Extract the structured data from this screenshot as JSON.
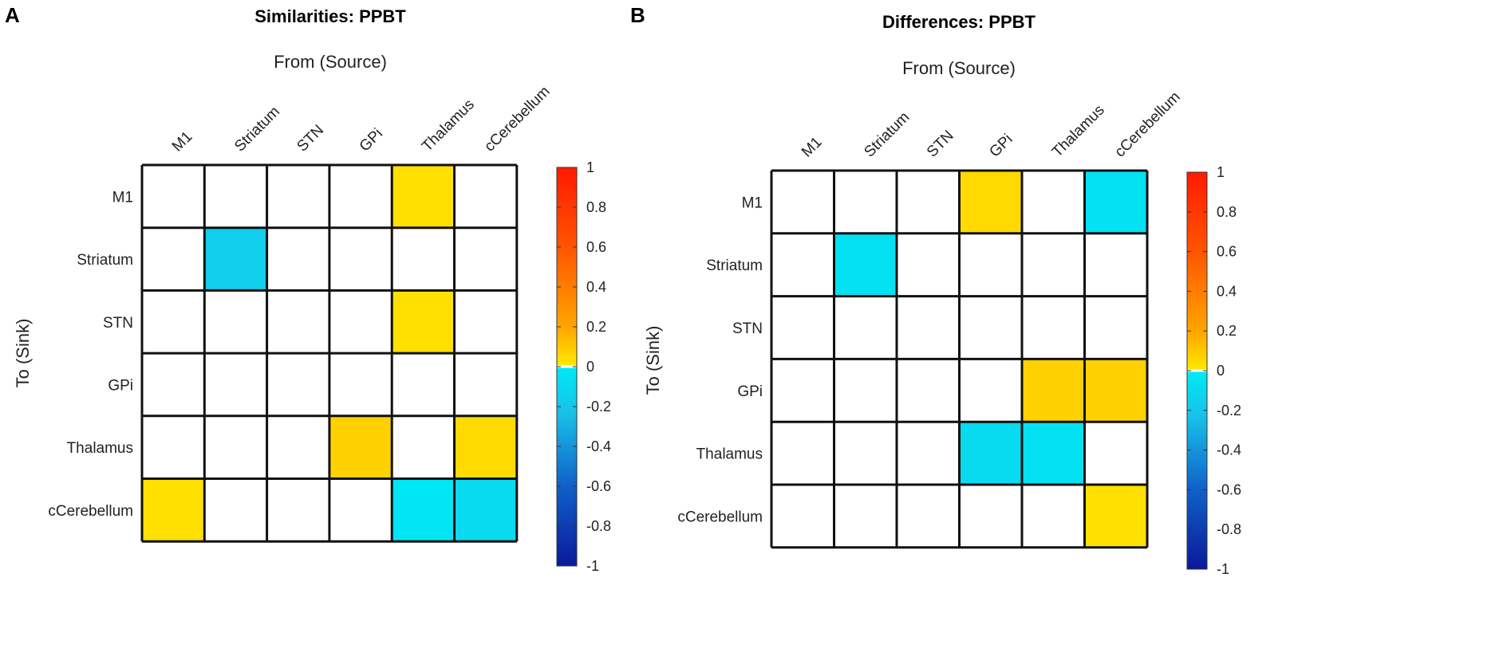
{
  "chart_data": [
    {
      "type": "heatmap",
      "panel_label": "A",
      "title": "Similarities: PPBT",
      "xlabel": "From (Source)",
      "ylabel": "To (Sink)",
      "columns": [
        "M1",
        "Striatum",
        "STN",
        "GPi",
        "Thalamus",
        "cCerebellum"
      ],
      "rows": [
        "M1",
        "Striatum",
        "STN",
        "GPi",
        "Thalamus",
        "cCerebellum"
      ],
      "values": [
        [
          0,
          0,
          0,
          0,
          0.2,
          0
        ],
        [
          0,
          -0.3,
          0,
          0,
          0,
          0
        ],
        [
          0,
          0,
          0,
          0,
          0.2,
          0
        ],
        [
          0,
          0,
          0,
          0,
          0,
          0
        ],
        [
          0,
          0,
          0,
          0.25,
          0,
          0.22
        ],
        [
          0.2,
          0,
          0,
          0,
          -0.2,
          -0.25
        ]
      ],
      "colorbar": {
        "min": -1,
        "max": 1,
        "ticks": [
          "1",
          "0.8",
          "0.6",
          "0.4",
          "0.2",
          "0",
          "-0.2",
          "-0.4",
          "-0.6",
          "-0.8",
          "-1"
        ]
      }
    },
    {
      "type": "heatmap",
      "panel_label": "B",
      "title": "Differences: PPBT",
      "xlabel": "From (Source)",
      "ylabel": "To (Sink)",
      "columns": [
        "M1",
        "Striatum",
        "STN",
        "GPi",
        "Thalamus",
        "cCerebellum"
      ],
      "rows": [
        "M1",
        "Striatum",
        "STN",
        "GPi",
        "Thalamus",
        "cCerebellum"
      ],
      "values": [
        [
          0,
          0,
          0,
          0.22,
          0,
          -0.22
        ],
        [
          0,
          -0.22,
          0,
          0,
          0,
          0
        ],
        [
          0,
          0,
          0,
          0,
          0,
          0
        ],
        [
          0,
          0,
          0,
          0,
          0.25,
          0.25
        ],
        [
          0,
          0,
          0,
          -0.25,
          -0.22,
          0
        ],
        [
          0,
          0,
          0,
          0,
          0,
          0.2
        ]
      ],
      "colorbar": {
        "min": -1,
        "max": 1,
        "ticks": [
          "1",
          "0.8",
          "0.6",
          "0.4",
          "0.2",
          "0",
          "-0.2",
          "-0.4",
          "-0.6",
          "-0.8",
          "-1"
        ]
      }
    }
  ]
}
